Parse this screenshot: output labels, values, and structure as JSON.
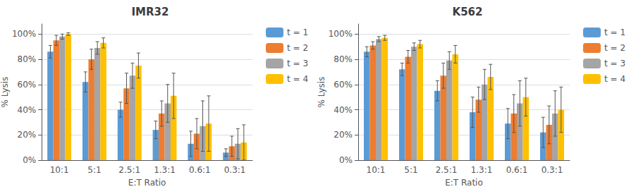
{
  "chart_data": [
    {
      "type": "bar",
      "title": "IMR32",
      "xlabel": "E:T Ratio",
      "ylabel": "% Lysis",
      "categories": [
        "10:1",
        "5:1",
        "2.5:1",
        "1.3:1",
        "0.6:1",
        "0.3:1"
      ],
      "series": [
        {
          "name": "t = 1",
          "color": "#5B9BD5",
          "values": [
            0.86,
            0.62,
            0.4,
            0.24,
            0.13,
            0.06
          ],
          "errors": [
            0.05,
            0.08,
            0.06,
            0.07,
            0.1,
            0.03
          ]
        },
        {
          "name": "t = 2",
          "color": "#ED7D31",
          "values": [
            0.95,
            0.8,
            0.57,
            0.37,
            0.21,
            0.11
          ],
          "errors": [
            0.04,
            0.08,
            0.12,
            0.1,
            0.12,
            0.08
          ]
        },
        {
          "name": "t = 3",
          "color": "#A5A5A5",
          "values": [
            0.98,
            0.89,
            0.67,
            0.45,
            0.27,
            0.13
          ],
          "errors": [
            0.02,
            0.05,
            0.1,
            0.15,
            0.2,
            0.12
          ]
        },
        {
          "name": "t = 4",
          "color": "#FFC000",
          "values": [
            1.0,
            0.93,
            0.75,
            0.51,
            0.29,
            0.14
          ],
          "errors": [
            0.01,
            0.04,
            0.1,
            0.18,
            0.22,
            0.14
          ]
        }
      ],
      "ylim": [
        0,
        1.08
      ],
      "yticks": [
        {
          "value": 0,
          "label": "0%"
        },
        {
          "value": 0.2,
          "label": "20%"
        },
        {
          "value": 0.4,
          "label": "40%"
        },
        {
          "value": 0.6,
          "label": "60%"
        },
        {
          "value": 0.8,
          "label": "80%"
        },
        {
          "value": 1.0,
          "label": "100%"
        }
      ],
      "grid": true,
      "legend": "right"
    },
    {
      "type": "bar",
      "title": "K562",
      "xlabel": "E:T Ratio",
      "ylabel": "% Lysis",
      "categories": [
        "10:1",
        "5:1",
        "2.5:1",
        "1.3:1",
        "0.6:1",
        "0.3:1"
      ],
      "series": [
        {
          "name": "t = 1",
          "color": "#5B9BD5",
          "values": [
            0.86,
            0.72,
            0.55,
            0.38,
            0.29,
            0.22
          ],
          "errors": [
            0.04,
            0.05,
            0.08,
            0.12,
            0.12,
            0.12
          ]
        },
        {
          "name": "t = 2",
          "color": "#ED7D31",
          "values": [
            0.91,
            0.82,
            0.67,
            0.48,
            0.37,
            0.28
          ],
          "errors": [
            0.03,
            0.05,
            0.1,
            0.1,
            0.15,
            0.15
          ]
        },
        {
          "name": "t = 3",
          "color": "#A5A5A5",
          "values": [
            0.96,
            0.9,
            0.79,
            0.6,
            0.45,
            0.37
          ],
          "errors": [
            0.02,
            0.03,
            0.07,
            0.12,
            0.18,
            0.18
          ]
        },
        {
          "name": "t = 4",
          "color": "#FFC000",
          "values": [
            0.97,
            0.92,
            0.84,
            0.66,
            0.5,
            0.4
          ],
          "errors": [
            0.02,
            0.03,
            0.07,
            0.1,
            0.15,
            0.18
          ]
        }
      ],
      "ylim": [
        0,
        1.08
      ],
      "yticks": [
        {
          "value": 0,
          "label": "0%"
        },
        {
          "value": 0.2,
          "label": "20%"
        },
        {
          "value": 0.4,
          "label": "40%"
        },
        {
          "value": 0.6,
          "label": "60%"
        },
        {
          "value": 0.8,
          "label": "80%"
        },
        {
          "value": 1.0,
          "label": "100%"
        }
      ],
      "grid": true,
      "legend": "right"
    }
  ]
}
